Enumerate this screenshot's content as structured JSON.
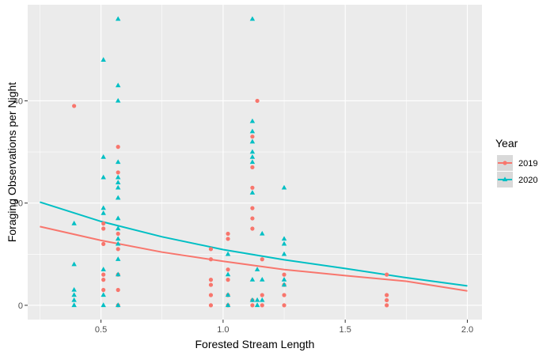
{
  "chart_data": {
    "type": "scatter",
    "xlabel": "Forested Stream Length",
    "ylabel": "Foraging Observations per Night",
    "xlim": [
      0.2,
      2.06
    ],
    "ylim": [
      -2.8,
      58.8
    ],
    "x_ticks": [
      0.5,
      1.0,
      1.5,
      2.0
    ],
    "x_tick_labels": [
      "0.5",
      "1.0",
      "1.5",
      "2.0"
    ],
    "y_ticks": [
      0,
      20,
      40
    ],
    "y_tick_labels": [
      "0",
      "20",
      "40"
    ],
    "grid": true,
    "panel_background": "#ebebeb",
    "legend": {
      "title": "Year",
      "position": "right",
      "entries": [
        {
          "label": "2019",
          "color": "#f8766d",
          "shape": "circle"
        },
        {
          "label": "2020",
          "color": "#00bfc4",
          "shape": "triangle"
        }
      ]
    },
    "series": [
      {
        "name": "2019",
        "color": "#f8766d",
        "shape": "circle",
        "points": [
          [
            0.39,
            39
          ],
          [
            0.51,
            3
          ],
          [
            0.51,
            5
          ],
          [
            0.51,
            6
          ],
          [
            0.51,
            12
          ],
          [
            0.51,
            15
          ],
          [
            0.51,
            16
          ],
          [
            0.57,
            0
          ],
          [
            0.57,
            3
          ],
          [
            0.57,
            6
          ],
          [
            0.57,
            11
          ],
          [
            0.57,
            14
          ],
          [
            0.57,
            26
          ],
          [
            0.57,
            31
          ],
          [
            0.95,
            0
          ],
          [
            0.95,
            2
          ],
          [
            0.95,
            4
          ],
          [
            0.95,
            5
          ],
          [
            0.95,
            9
          ],
          [
            0.95,
            11
          ],
          [
            1.02,
            0
          ],
          [
            1.02,
            2
          ],
          [
            1.02,
            5
          ],
          [
            1.02,
            7
          ],
          [
            1.02,
            13
          ],
          [
            1.02,
            14
          ],
          [
            1.12,
            0
          ],
          [
            1.12,
            1
          ],
          [
            1.12,
            15
          ],
          [
            1.12,
            17
          ],
          [
            1.12,
            19
          ],
          [
            1.12,
            23
          ],
          [
            1.12,
            27
          ],
          [
            1.12,
            33
          ],
          [
            1.14,
            40
          ],
          [
            1.16,
            0
          ],
          [
            1.16,
            2
          ],
          [
            1.16,
            9
          ],
          [
            1.25,
            0
          ],
          [
            1.25,
            2
          ],
          [
            1.25,
            4
          ],
          [
            1.25,
            6
          ],
          [
            1.67,
            0
          ],
          [
            1.67,
            1
          ],
          [
            1.67,
            2
          ],
          [
            1.67,
            6
          ]
        ],
        "trend": [
          [
            0.25,
            15.4
          ],
          [
            0.5,
            12.7
          ],
          [
            0.75,
            10.4
          ],
          [
            1.0,
            8.6
          ],
          [
            1.25,
            7.0
          ],
          [
            1.5,
            5.8
          ],
          [
            1.75,
            4.7
          ],
          [
            2.0,
            2.8
          ]
        ]
      },
      {
        "name": "2020",
        "color": "#00bfc4",
        "shape": "triangle",
        "points": [
          [
            0.39,
            0
          ],
          [
            0.39,
            1
          ],
          [
            0.39,
            2
          ],
          [
            0.39,
            3
          ],
          [
            0.39,
            8
          ],
          [
            0.39,
            16
          ],
          [
            0.51,
            0
          ],
          [
            0.51,
            2
          ],
          [
            0.51,
            7
          ],
          [
            0.51,
            18
          ],
          [
            0.51,
            19
          ],
          [
            0.51,
            25
          ],
          [
            0.51,
            29
          ],
          [
            0.51,
            48
          ],
          [
            0.57,
            0
          ],
          [
            0.57,
            6
          ],
          [
            0.57,
            9
          ],
          [
            0.57,
            12
          ],
          [
            0.57,
            13
          ],
          [
            0.57,
            15
          ],
          [
            0.57,
            17
          ],
          [
            0.57,
            21
          ],
          [
            0.57,
            23
          ],
          [
            0.57,
            24
          ],
          [
            0.57,
            25
          ],
          [
            0.57,
            28
          ],
          [
            0.57,
            40
          ],
          [
            0.57,
            43
          ],
          [
            0.57,
            56
          ],
          [
            1.02,
            0
          ],
          [
            1.02,
            2
          ],
          [
            1.02,
            6
          ],
          [
            1.02,
            10
          ],
          [
            1.12,
            1
          ],
          [
            1.12,
            5
          ],
          [
            1.12,
            22
          ],
          [
            1.12,
            28
          ],
          [
            1.12,
            29
          ],
          [
            1.12,
            30
          ],
          [
            1.12,
            32
          ],
          [
            1.12,
            34
          ],
          [
            1.12,
            36
          ],
          [
            1.12,
            56
          ],
          [
            1.14,
            0
          ],
          [
            1.14,
            1
          ],
          [
            1.14,
            7
          ],
          [
            1.16,
            1
          ],
          [
            1.16,
            5
          ],
          [
            1.16,
            14
          ],
          [
            1.25,
            4
          ],
          [
            1.25,
            5
          ],
          [
            1.25,
            10
          ],
          [
            1.25,
            12
          ],
          [
            1.25,
            13
          ],
          [
            1.25,
            23
          ]
        ],
        "trend": [
          [
            0.25,
            20.2
          ],
          [
            0.5,
            16.4
          ],
          [
            0.75,
            13.4
          ],
          [
            1.0,
            10.9
          ],
          [
            1.25,
            8.9
          ],
          [
            1.5,
            7.2
          ],
          [
            1.75,
            5.4
          ],
          [
            2.0,
            3.8
          ]
        ]
      }
    ]
  }
}
